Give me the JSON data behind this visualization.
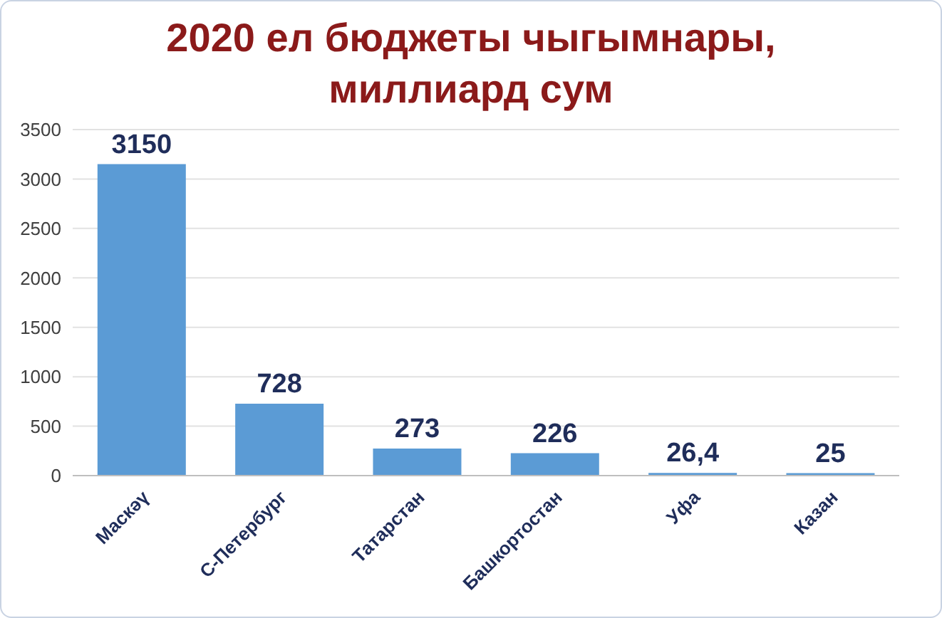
{
  "chart_data": {
    "type": "bar",
    "title": "2020 ел бюджеты чыгымнары,\nмиллиард сум",
    "categories": [
      "Маскәү",
      "С-Петербург",
      "Татарстан",
      "Башкортостан",
      "Уфа",
      "Казан"
    ],
    "values": [
      3150,
      728,
      273,
      226,
      26.4,
      25
    ],
    "value_labels": [
      "3150",
      "728",
      "273",
      "226",
      "26,4",
      "25"
    ],
    "color": "#5b9bd5",
    "ylim": [
      0,
      3500
    ],
    "yticks": [
      0,
      500,
      1000,
      1500,
      2000,
      2500,
      3000,
      3500
    ],
    "grid": "y",
    "legend": false
  }
}
